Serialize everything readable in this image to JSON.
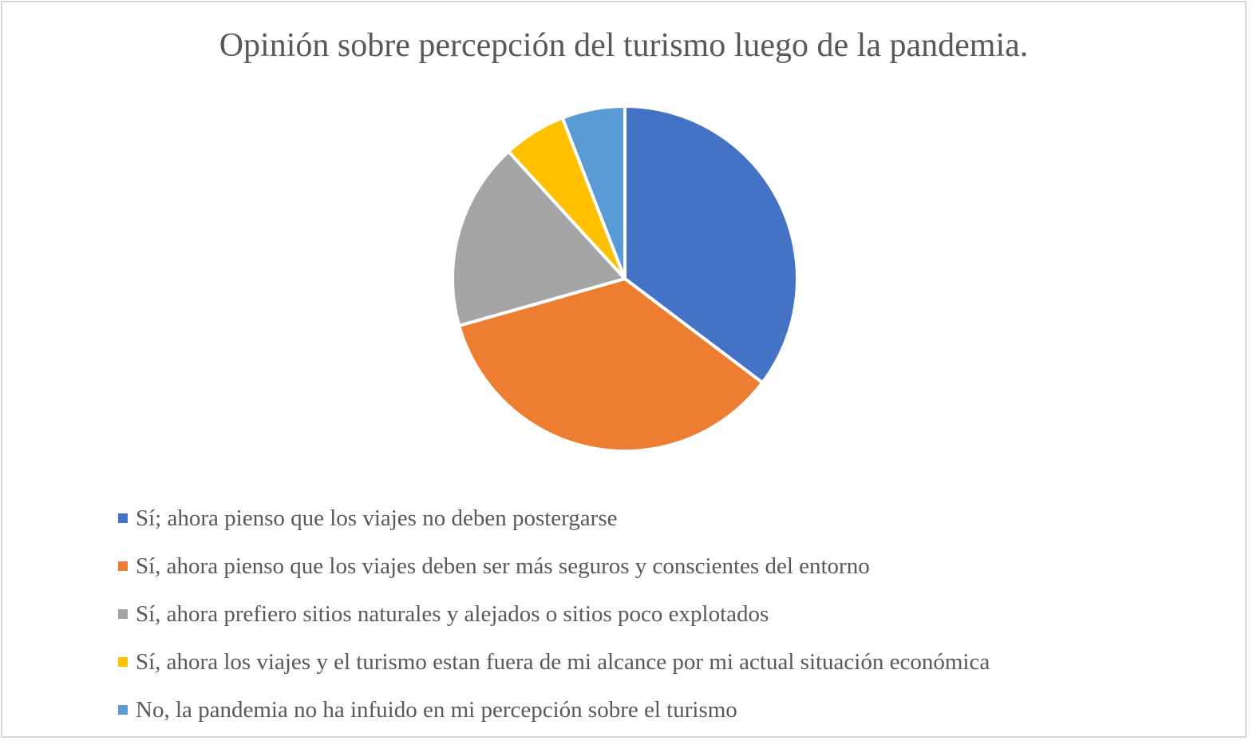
{
  "chart_data": {
    "type": "pie",
    "title": "Opinión sobre percepción del turismo luego de la pandemia.",
    "categories": [
      "Sí; ahora pienso que los viajes no deben postergarse",
      "Sí, ahora pienso que los viajes deben ser más seguros y conscientes del entorno",
      "Sí, ahora prefiero sitios naturales y alejados o sitios poco explotados",
      "Sí, ahora los viajes y el turismo estan fuera de mi alcance por mi actual situación económica",
      "No, la pandemia no ha infuido en mi percepción sobre el turismo"
    ],
    "values": [
      35.3,
      35.3,
      17.6,
      5.9,
      5.9
    ],
    "colors": [
      "#4472c4",
      "#ed7d31",
      "#a5a5a5",
      "#ffc000",
      "#5b9bd5"
    ],
    "legend_position": "bottom"
  }
}
